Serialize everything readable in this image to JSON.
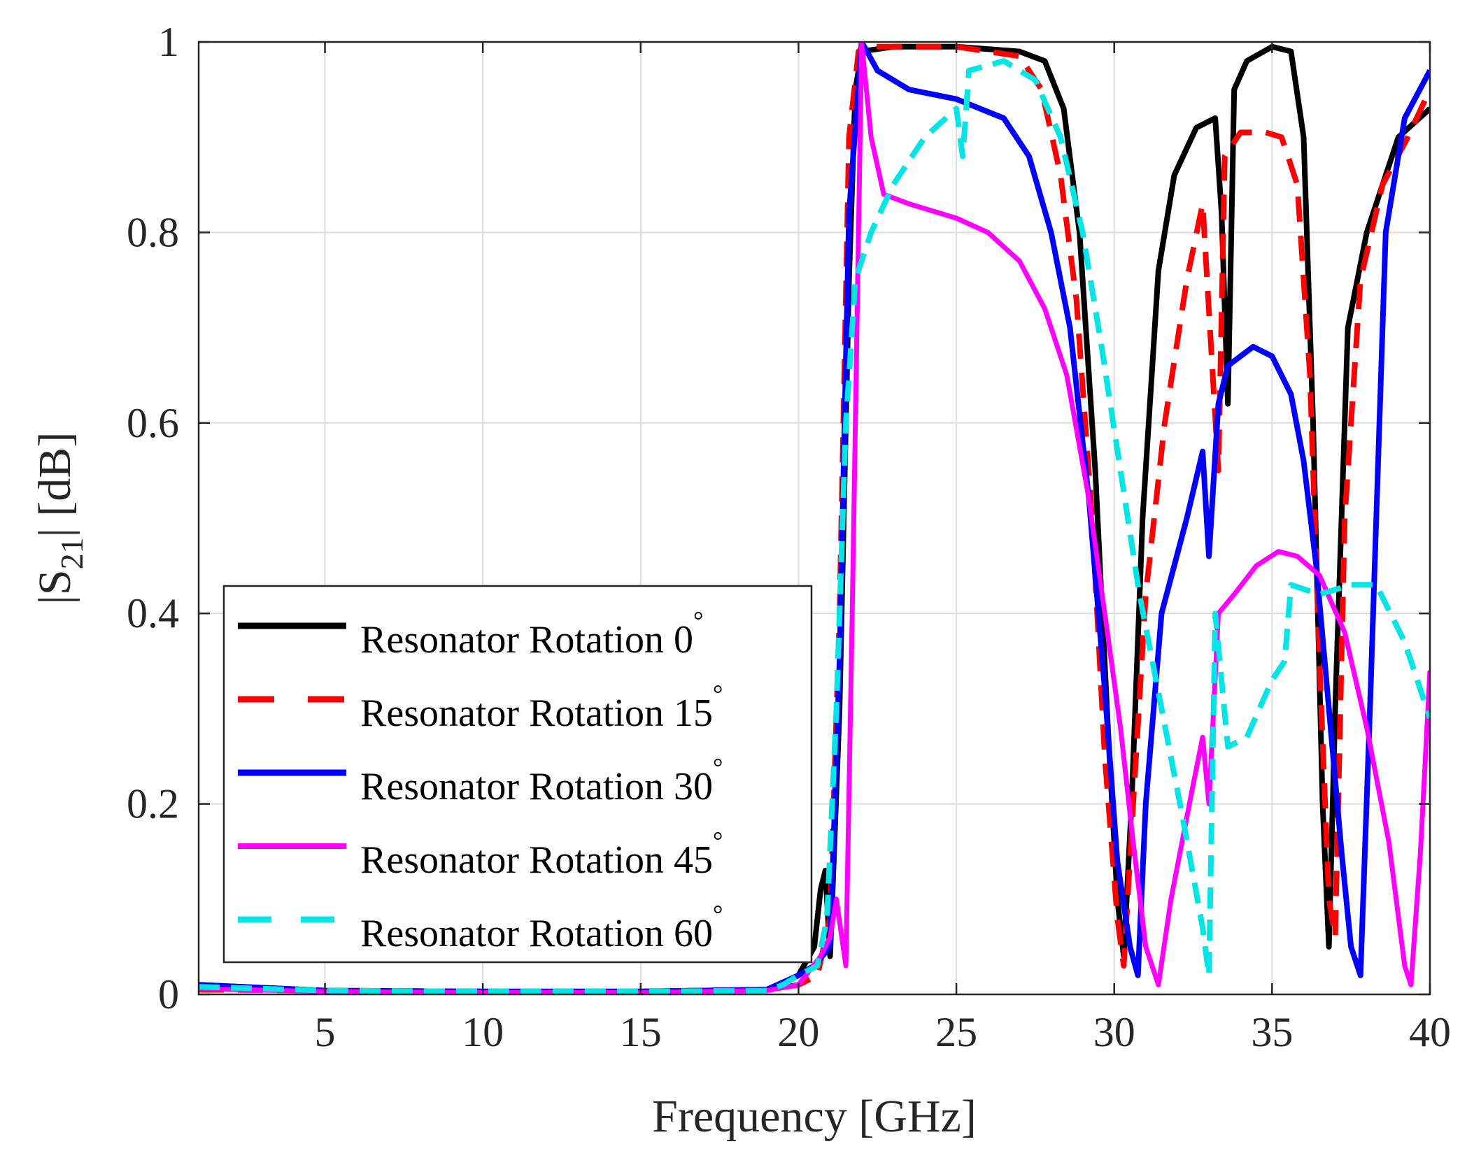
{
  "chart_data": {
    "type": "line",
    "title": "",
    "xlabel": "Frequency [GHz]",
    "ylabel_parts": {
      "prefix": "|S",
      "subscript": "21",
      "suffix": "| [dB]"
    },
    "xlim": [
      1,
      40
    ],
    "ylim": [
      0,
      1
    ],
    "xticks": [
      5,
      10,
      15,
      20,
      25,
      30,
      35,
      40
    ],
    "yticks": [
      0,
      0.2,
      0.4,
      0.6,
      0.8,
      1
    ],
    "ytick_labels": [
      "0",
      "0.2",
      "0.4",
      "0.6",
      "0.8",
      "1"
    ],
    "grid": true,
    "legend_position": "lower-left",
    "degree_symbol": "°",
    "series": [
      {
        "name": "Resonator Rotation 0",
        "color": "#000000",
        "dash": "solid",
        "points": [
          [
            1,
            0.01
          ],
          [
            5,
            0.004
          ],
          [
            10,
            0.003
          ],
          [
            15,
            0.003
          ],
          [
            19,
            0.005
          ],
          [
            20,
            0.02
          ],
          [
            20.5,
            0.05
          ],
          [
            20.7,
            0.11
          ],
          [
            20.85,
            0.13
          ],
          [
            21.0,
            0.04
          ],
          [
            21.3,
            0.3
          ],
          [
            21.6,
            0.75
          ],
          [
            21.8,
            0.95
          ],
          [
            22,
            0.99
          ],
          [
            23,
            0.995
          ],
          [
            25,
            0.995
          ],
          [
            27,
            0.99
          ],
          [
            27.8,
            0.98
          ],
          [
            28.4,
            0.93
          ],
          [
            28.9,
            0.8
          ],
          [
            29.4,
            0.55
          ],
          [
            29.8,
            0.28
          ],
          [
            30.1,
            0.1
          ],
          [
            30.3,
            0.04
          ],
          [
            30.55,
            0.2
          ],
          [
            30.9,
            0.5
          ],
          [
            31.4,
            0.76
          ],
          [
            31.9,
            0.86
          ],
          [
            32.6,
            0.91
          ],
          [
            33.2,
            0.92
          ],
          [
            33.4,
            0.82
          ],
          [
            33.6,
            0.62
          ],
          [
            33.8,
            0.95
          ],
          [
            34.2,
            0.98
          ],
          [
            35,
            0.995
          ],
          [
            35.6,
            0.99
          ],
          [
            36.0,
            0.9
          ],
          [
            36.3,
            0.6
          ],
          [
            36.6,
            0.2
          ],
          [
            36.8,
            0.05
          ],
          [
            37.0,
            0.3
          ],
          [
            37.4,
            0.7
          ],
          [
            38,
            0.8
          ],
          [
            39,
            0.9
          ],
          [
            40,
            0.93
          ]
        ]
      },
      {
        "name": "Resonator Rotation 15",
        "color": "#ff0000",
        "dash": "dashed",
        "points": [
          [
            1,
            0.005
          ],
          [
            5,
            0.004
          ],
          [
            10,
            0.003
          ],
          [
            15,
            0.003
          ],
          [
            19,
            0.005
          ],
          [
            20,
            0.01
          ],
          [
            20.6,
            0.02
          ],
          [
            21,
            0.08
          ],
          [
            21.3,
            0.4
          ],
          [
            21.6,
            0.9
          ],
          [
            21.9,
            0.99
          ],
          [
            22.2,
            0.995
          ],
          [
            25,
            0.995
          ],
          [
            27,
            0.985
          ],
          [
            27.7,
            0.95
          ],
          [
            28.3,
            0.86
          ],
          [
            28.8,
            0.73
          ],
          [
            29.3,
            0.5
          ],
          [
            29.7,
            0.25
          ],
          [
            30.1,
            0.08
          ],
          [
            30.3,
            0.03
          ],
          [
            30.6,
            0.2
          ],
          [
            31,
            0.42
          ],
          [
            31.6,
            0.6
          ],
          [
            32.3,
            0.75
          ],
          [
            32.8,
            0.83
          ],
          [
            33.3,
            0.55
          ],
          [
            33.5,
            0.88
          ],
          [
            34,
            0.905
          ],
          [
            34.8,
            0.905
          ],
          [
            35.3,
            0.9
          ],
          [
            35.8,
            0.85
          ],
          [
            36.2,
            0.65
          ],
          [
            36.5,
            0.35
          ],
          [
            36.8,
            0.1
          ],
          [
            37.0,
            0.06
          ],
          [
            37.3,
            0.5
          ],
          [
            37.8,
            0.75
          ],
          [
            38.5,
            0.85
          ],
          [
            39.3,
            0.9
          ],
          [
            40,
            0.95
          ]
        ]
      },
      {
        "name": "Resonator Rotation 30",
        "color": "#0000ff",
        "dash": "solid",
        "points": [
          [
            1,
            0.01
          ],
          [
            5,
            0.004
          ],
          [
            10,
            0.003
          ],
          [
            15,
            0.003
          ],
          [
            19,
            0.005
          ],
          [
            20,
            0.02
          ],
          [
            20.5,
            0.03
          ],
          [
            21,
            0.05
          ],
          [
            21.3,
            0.35
          ],
          [
            21.6,
            0.82
          ],
          [
            22,
            1.0
          ],
          [
            22.5,
            0.97
          ],
          [
            23.5,
            0.95
          ],
          [
            25,
            0.94
          ],
          [
            26.5,
            0.92
          ],
          [
            27.3,
            0.88
          ],
          [
            28,
            0.8
          ],
          [
            28.6,
            0.7
          ],
          [
            29.2,
            0.52
          ],
          [
            29.7,
            0.32
          ],
          [
            30.1,
            0.14
          ],
          [
            30.5,
            0.05
          ],
          [
            30.75,
            0.02
          ],
          [
            31,
            0.2
          ],
          [
            31.5,
            0.4
          ],
          [
            32.3,
            0.5
          ],
          [
            32.8,
            0.57
          ],
          [
            33.0,
            0.46
          ],
          [
            33.3,
            0.62
          ],
          [
            33.6,
            0.66
          ],
          [
            34.4,
            0.68
          ],
          [
            35.0,
            0.67
          ],
          [
            35.6,
            0.63
          ],
          [
            36.0,
            0.56
          ],
          [
            36.4,
            0.45
          ],
          [
            36.8,
            0.3
          ],
          [
            37.2,
            0.15
          ],
          [
            37.5,
            0.05
          ],
          [
            37.8,
            0.02
          ],
          [
            38.1,
            0.3
          ],
          [
            38.6,
            0.8
          ],
          [
            39.2,
            0.92
          ],
          [
            40,
            0.97
          ]
        ]
      },
      {
        "name": "Resonator Rotation 45",
        "color": "#ff00ff",
        "dash": "solid",
        "points": [
          [
            1,
            0.006
          ],
          [
            5,
            0.003
          ],
          [
            10,
            0.002
          ],
          [
            15,
            0.002
          ],
          [
            19,
            0.004
          ],
          [
            20,
            0.01
          ],
          [
            20.7,
            0.04
          ],
          [
            21.0,
            0.06
          ],
          [
            21.2,
            0.1
          ],
          [
            21.5,
            0.03
          ],
          [
            21.7,
            0.4
          ],
          [
            22,
            1.0
          ],
          [
            22.3,
            0.9
          ],
          [
            22.7,
            0.84
          ],
          [
            23.5,
            0.83
          ],
          [
            25,
            0.815
          ],
          [
            26,
            0.8
          ],
          [
            27,
            0.77
          ],
          [
            27.8,
            0.72
          ],
          [
            28.5,
            0.65
          ],
          [
            29.2,
            0.52
          ],
          [
            29.7,
            0.4
          ],
          [
            30.2,
            0.28
          ],
          [
            30.6,
            0.16
          ],
          [
            31.0,
            0.05
          ],
          [
            31.4,
            0.01
          ],
          [
            31.8,
            0.1
          ],
          [
            32.5,
            0.22
          ],
          [
            32.8,
            0.27
          ],
          [
            33.0,
            0.2
          ],
          [
            33.3,
            0.4
          ],
          [
            33.8,
            0.42
          ],
          [
            34.5,
            0.45
          ],
          [
            35.2,
            0.465
          ],
          [
            35.8,
            0.46
          ],
          [
            36.5,
            0.44
          ],
          [
            37.3,
            0.38
          ],
          [
            38,
            0.28
          ],
          [
            38.7,
            0.16
          ],
          [
            39.2,
            0.03
          ],
          [
            39.4,
            0.01
          ],
          [
            39.7,
            0.15
          ],
          [
            40,
            0.34
          ]
        ]
      },
      {
        "name": "Resonator Rotation 60",
        "color": "#00e5e5",
        "dash": "dashed",
        "points": [
          [
            1,
            0.008
          ],
          [
            5,
            0.004
          ],
          [
            10,
            0.003
          ],
          [
            15,
            0.003
          ],
          [
            19,
            0.004
          ],
          [
            19.5,
            0.01
          ],
          [
            20,
            0.02
          ],
          [
            20.6,
            0.03
          ],
          [
            20.9,
            0.08
          ],
          [
            21.2,
            0.3
          ],
          [
            21.5,
            0.6
          ],
          [
            21.8,
            0.75
          ],
          [
            22.3,
            0.8
          ],
          [
            23,
            0.85
          ],
          [
            24,
            0.9
          ],
          [
            25,
            0.93
          ],
          [
            25.2,
            0.88
          ],
          [
            25.4,
            0.97
          ],
          [
            26.5,
            0.98
          ],
          [
            27.5,
            0.96
          ],
          [
            28.3,
            0.9
          ],
          [
            29,
            0.8
          ],
          [
            29.6,
            0.68
          ],
          [
            30.2,
            0.55
          ],
          [
            30.8,
            0.42
          ],
          [
            31.5,
            0.3
          ],
          [
            32.2,
            0.18
          ],
          [
            32.8,
            0.07
          ],
          [
            33.0,
            0.02
          ],
          [
            33.2,
            0.4
          ],
          [
            33.6,
            0.26
          ],
          [
            34.2,
            0.27
          ],
          [
            35,
            0.33
          ],
          [
            35.4,
            0.35
          ],
          [
            35.6,
            0.43
          ],
          [
            36.5,
            0.42
          ],
          [
            37.5,
            0.43
          ],
          [
            38.3,
            0.43
          ],
          [
            39.2,
            0.37
          ],
          [
            40,
            0.29
          ]
        ]
      }
    ]
  }
}
